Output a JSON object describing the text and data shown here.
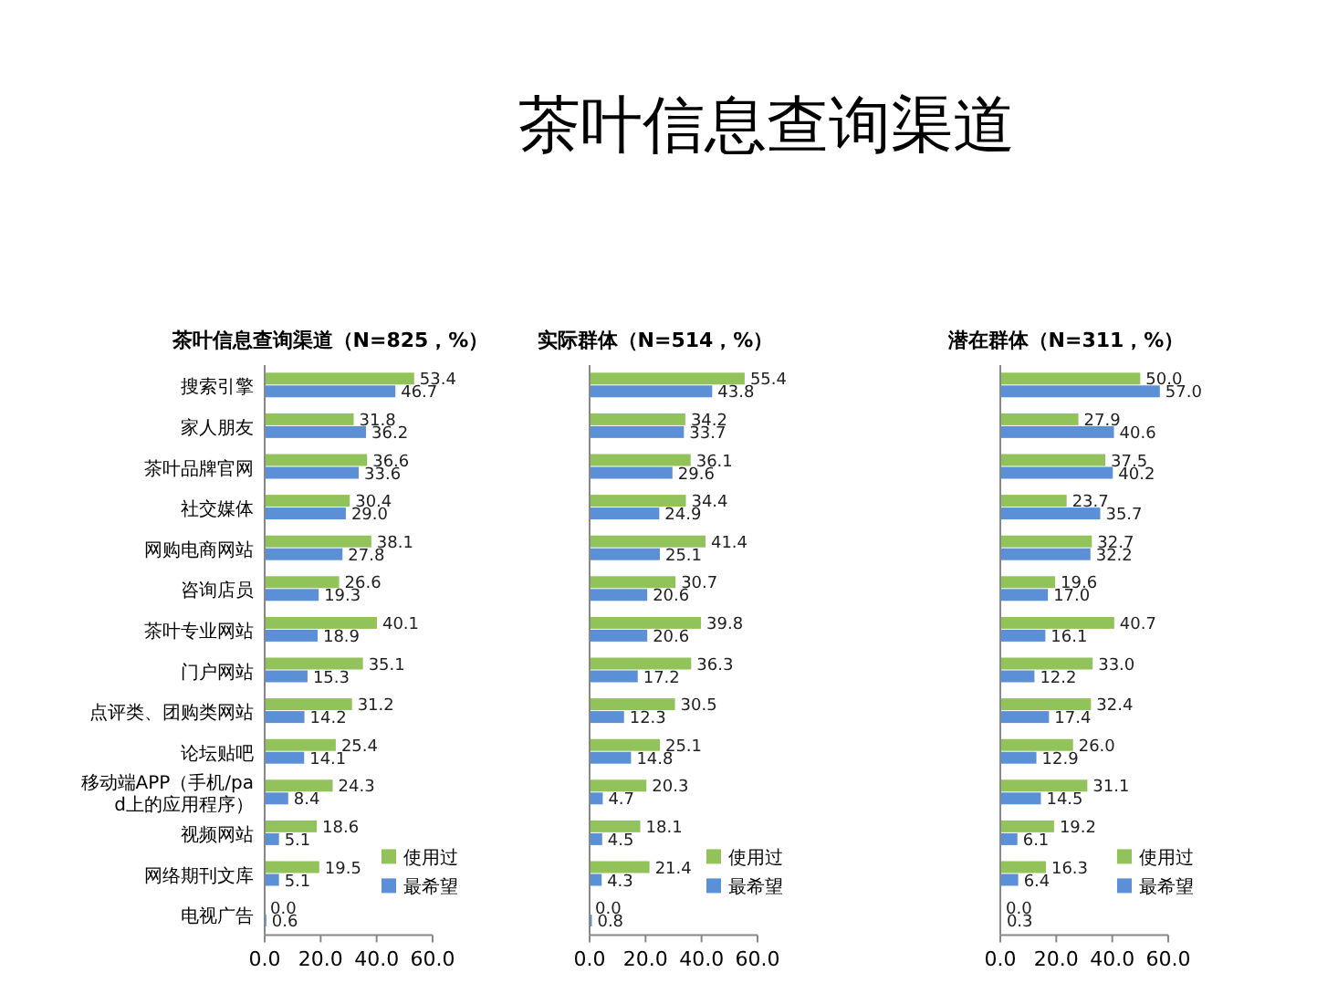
{
  "chart_data": [
    {
      "type": "bar",
      "orientation": "horizontal",
      "title": "茶叶信息查询渠道（N=825，%）",
      "categories": [
        "搜索引擎",
        "家人朋友",
        "茶叶品牌官网",
        "社交媒体",
        "网购电商网站",
        "咨询店员",
        "茶叶专业网站",
        "门户网站",
        "点评类、团购类网站",
        "论坛贴吧",
        "移动端APP（手机/pad上的应用程序）",
        "视频网站",
        "网络期刊文库",
        "电视广告"
      ],
      "series": [
        {
          "name": "使用过",
          "color": "#92c35a",
          "values": [
            53.4,
            31.8,
            36.6,
            30.4,
            38.1,
            26.6,
            40.1,
            35.1,
            31.2,
            25.4,
            24.3,
            18.6,
            19.5,
            0.0
          ],
          "value_labels": [
            "53.4",
            "31.8",
            "36.6",
            "30.4",
            "38.1",
            "26.6",
            "40.1",
            "35.1",
            "31.2",
            "25.4",
            "24.3",
            "18.6",
            "19.5",
            "0.0"
          ]
        },
        {
          "name": "最希望",
          "color": "#5b8fd6",
          "values": [
            46.7,
            36.2,
            33.6,
            29.0,
            27.8,
            19.3,
            18.9,
            15.3,
            14.2,
            14.1,
            8.4,
            5.1,
            5.1,
            0.6
          ],
          "value_labels": [
            "46.7",
            "36.2",
            "33.6",
            "29.0",
            "27.8",
            "19.3",
            "18.9",
            "15.3",
            "14.2",
            "14.1",
            "8.4",
            "5.1",
            "5.1",
            "0.6"
          ]
        }
      ],
      "xlim": [
        0,
        60
      ],
      "xticks": [
        {
          "value": 0,
          "label": "0.0"
        },
        {
          "value": 20,
          "label": "20.0"
        },
        {
          "value": 40,
          "label": "40.0"
        },
        {
          "value": 60,
          "label": "60.0"
        }
      ],
      "legend": "bottom right",
      "grid": false
    },
    {
      "type": "bar",
      "orientation": "horizontal",
      "title": "实际群体（N=514，%）",
      "annotations": [
        "茶叶信息查询渠道"
      ],
      "categories": [
        "搜索引擎",
        "家人朋友",
        "茶叶品牌官网",
        "社交媒体",
        "网购电商网站",
        "咨询店员",
        "茶叶专业网站",
        "门户网站",
        "点评类、团购类网站",
        "论坛贴吧",
        "移动端APP（手机/pad上的应用程序）",
        "视频网站",
        "网络期刊文库",
        "电视广告"
      ],
      "series": [
        {
          "name": "使用过",
          "color": "#92c35a",
          "values": [
            55.4,
            34.2,
            36.1,
            34.4,
            41.4,
            30.7,
            39.8,
            36.3,
            30.5,
            25.1,
            20.3,
            18.1,
            21.4,
            0.0
          ],
          "value_labels": [
            "55.4",
            "34.2",
            "36.1",
            "34.4",
            "41.4",
            "30.7",
            "39.8",
            "36.3",
            "30.5",
            "25.1",
            "20.3",
            "18.1",
            "21.4",
            "0.0"
          ]
        },
        {
          "name": "最希望",
          "color": "#5b8fd6",
          "values": [
            43.8,
            33.7,
            29.6,
            24.9,
            25.1,
            20.6,
            20.6,
            17.2,
            12.3,
            14.8,
            4.7,
            4.5,
            4.3,
            0.8
          ],
          "value_labels": [
            "43.8",
            "33.7",
            "29.6",
            "24.9",
            "25.1",
            "20.6",
            "20.6",
            "17.2",
            "12.3",
            "14.8",
            "4.7",
            "4.5",
            "4.3",
            "0.8"
          ]
        }
      ],
      "xlim": [
        0,
        60
      ],
      "xticks": [
        {
          "value": 0,
          "label": "0.0"
        },
        {
          "value": 20,
          "label": "20.0"
        },
        {
          "value": 40,
          "label": "40.0"
        },
        {
          "value": 60,
          "label": "60.0"
        }
      ],
      "legend": "bottom right",
      "grid": false,
      "tick_labels": "x"
    },
    {
      "type": "bar",
      "orientation": "horizontal",
      "title": "潜在群体（N=311，%）",
      "categories": [
        "搜索引擎",
        "家人朋友",
        "茶叶品牌官网",
        "社交媒体",
        "网购电商网站",
        "咨询店员",
        "茶叶专业网站",
        "门户网站",
        "点评类、团购类网站",
        "论坛贴吧",
        "移动端APP（手机/pad上的应用程序）",
        "视频网站",
        "网络期刊文库",
        "电视广告"
      ],
      "series": [
        {
          "name": "使用过",
          "color": "#92c35a",
          "values": [
            50.0,
            27.9,
            37.5,
            23.7,
            32.7,
            19.6,
            40.7,
            33.0,
            32.4,
            26.0,
            31.1,
            19.2,
            16.3,
            0.0
          ],
          "value_labels": [
            "50.0",
            "27.9",
            "37.5",
            "23.7",
            "32.7",
            "19.6",
            "40.7",
            "33.0",
            "32.4",
            "26.0",
            "31.1",
            "19.2",
            "16.3",
            "0.0"
          ]
        },
        {
          "name": "最希望",
          "color": "#5b8fd6",
          "values": [
            57.0,
            40.6,
            40.2,
            35.7,
            32.2,
            17.0,
            16.1,
            12.2,
            17.4,
            12.9,
            14.5,
            6.1,
            6.4,
            0.3
          ],
          "value_labels": [
            "57.0",
            "40.6",
            "40.2",
            "35.7",
            "32.2",
            "17.0",
            "16.1",
            "12.2",
            "17.4",
            "12.9",
            "14.5",
            "6.1",
            "6.4",
            "0.3"
          ]
        }
      ],
      "xlim": [
        0,
        60
      ],
      "xticks": [
        {
          "value": 0,
          "label": "0.0"
        },
        {
          "value": 20,
          "label": "20.0"
        },
        {
          "value": 40,
          "label": "40.0"
        },
        {
          "value": 60,
          "label": "60.0"
        }
      ],
      "legend": "bottom right",
      "grid": false,
      "tick_labels": "x"
    }
  ]
}
